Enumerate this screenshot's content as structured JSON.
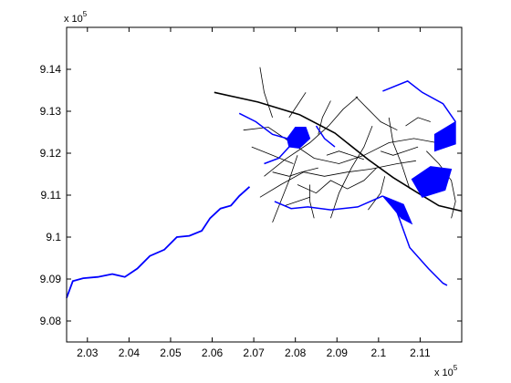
{
  "chart_data": {
    "type": "map",
    "title": "",
    "xlabel": "",
    "ylabel": "",
    "x_multiplier_label": "x 10",
    "x_multiplier_exp": "5",
    "y_multiplier_label": "x 10",
    "y_multiplier_exp": "5",
    "xlim": [
      2.025,
      2.12
    ],
    "ylim": [
      9.075,
      9.15
    ],
    "x_ticks": [
      "2.03",
      "2.04",
      "2.05",
      "2.06",
      "2.07",
      "2.08",
      "2.09",
      "2.1",
      "2.11"
    ],
    "x_tick_values": [
      2.03,
      2.04,
      2.05,
      2.06,
      2.07,
      2.08,
      2.09,
      2.1,
      2.11
    ],
    "y_ticks": [
      "9.08",
      "9.09",
      "9.1",
      "9.11",
      "9.12",
      "9.13",
      "9.14"
    ],
    "y_tick_values": [
      9.08,
      9.09,
      9.1,
      9.11,
      9.12,
      9.13,
      9.14
    ],
    "grid": false,
    "colors": {
      "water": "#0000ff",
      "roads": "#000000",
      "axes": "#000000"
    },
    "layers": {
      "water_line": [
        [
          2.025,
          9.0855
        ],
        [
          2.0265,
          9.0895
        ],
        [
          2.029,
          9.0902
        ],
        [
          2.0325,
          9.0905
        ],
        [
          2.036,
          9.0912
        ],
        [
          2.039,
          9.0905
        ],
        [
          2.042,
          9.0925
        ],
        [
          2.045,
          9.0955
        ],
        [
          2.0485,
          9.097
        ],
        [
          2.0515,
          9.1
        ],
        [
          2.0545,
          9.1003
        ],
        [
          2.0575,
          9.1015
        ],
        [
          2.0595,
          9.1045
        ],
        [
          2.062,
          9.1068
        ],
        [
          2.0645,
          9.1075
        ],
        [
          2.0665,
          9.1098
        ],
        [
          2.069,
          9.112
        ]
      ],
      "water_bodies": [
        [
          [
            2.078,
            9.1235
          ],
          [
            2.08,
            9.1262
          ],
          [
            2.0825,
            9.1262
          ],
          [
            2.0835,
            9.1235
          ],
          [
            2.081,
            9.1212
          ],
          [
            2.0785,
            9.1215
          ]
        ],
        [
          [
            2.101,
            9.1098
          ],
          [
            2.106,
            9.1078
          ],
          [
            2.108,
            9.1032
          ],
          [
            2.1055,
            9.1045
          ],
          [
            2.103,
            9.1075
          ]
        ],
        [
          [
            2.108,
            9.1138
          ],
          [
            2.1125,
            9.1168
          ],
          [
            2.1175,
            9.1162
          ],
          [
            2.116,
            9.1112
          ],
          [
            2.1105,
            9.1095
          ]
        ],
        [
          [
            2.1135,
            9.1245
          ],
          [
            2.1185,
            9.1275
          ],
          [
            2.1185,
            9.1222
          ],
          [
            2.1135,
            9.1205
          ]
        ]
      ],
      "water_streams": [
        [
          [
            2.1035,
            9.1085
          ],
          [
            2.1075,
            9.0975
          ],
          [
            2.112,
            9.0925
          ],
          [
            2.1155,
            9.089
          ],
          [
            2.1165,
            9.0885
          ]
        ],
        [
          [
            2.0665,
            9.1295
          ],
          [
            2.0705,
            9.1275
          ],
          [
            2.0745,
            9.1245
          ],
          [
            2.078,
            9.1235
          ]
        ],
        [
          [
            2.101,
            9.1348
          ],
          [
            2.107,
            9.1372
          ],
          [
            2.1105,
            9.1345
          ],
          [
            2.1155,
            9.1318
          ],
          [
            2.1185,
            9.1275
          ]
        ],
        [
          [
            2.0725,
            9.1175
          ],
          [
            2.076,
            9.1188
          ],
          [
            2.0785,
            9.1215
          ]
        ],
        [
          [
            2.075,
            9.1085
          ],
          [
            2.079,
            9.1068
          ],
          [
            2.083,
            9.1072
          ],
          [
            2.0885,
            9.1065
          ],
          [
            2.095,
            9.1072
          ],
          [
            2.101,
            9.1098
          ]
        ],
        [
          [
            2.085,
            9.1265
          ],
          [
            2.087,
            9.1235
          ],
          [
            2.0895,
            9.1215
          ]
        ]
      ],
      "highway": [
        [
          2.0605,
          9.1345
        ],
        [
          2.071,
          9.1322
        ],
        [
          2.081,
          9.1292
        ],
        [
          2.0895,
          9.1248
        ],
        [
          2.0975,
          9.1185
        ],
        [
          2.1035,
          9.1142
        ],
        [
          2.109,
          9.1108
        ],
        [
          2.1145,
          9.1075
        ],
        [
          2.12,
          9.1062
        ]
      ],
      "roads": [
        [
          [
            2.0675,
            9.1255
          ],
          [
            2.0735,
            9.1262
          ],
          [
            2.079,
            9.1225
          ],
          [
            2.0845,
            9.1188
          ],
          [
            2.0905,
            9.1175
          ],
          [
            2.0965,
            9.1195
          ],
          [
            2.1025,
            9.1225
          ],
          [
            2.1085,
            9.1235
          ],
          [
            2.114,
            9.1225
          ]
        ],
        [
          [
            2.0715,
            9.1095
          ],
          [
            2.0765,
            9.1125
          ],
          [
            2.082,
            9.1155
          ],
          [
            2.087,
            9.1145
          ],
          [
            2.0925,
            9.1155
          ],
          [
            2.098,
            9.1162
          ],
          [
            2.1045,
            9.1175
          ],
          [
            2.109,
            9.1182
          ]
        ],
        [
          [
            2.0725,
            9.1145
          ],
          [
            2.0775,
            9.1185
          ],
          [
            2.0835,
            9.1225
          ],
          [
            2.088,
            9.1265
          ],
          [
            2.0915,
            9.1305
          ],
          [
            2.095,
            9.1335
          ]
        ],
        [
          [
            2.0805,
            9.1125
          ],
          [
            2.085,
            9.1105
          ],
          [
            2.0885,
            9.1135
          ],
          [
            2.0925,
            9.1115
          ],
          [
            2.0965,
            9.1135
          ],
          [
            2.0995,
            9.1165
          ]
        ],
        [
          [
            2.0745,
            9.1035
          ],
          [
            2.0765,
            9.1085
          ],
          [
            2.0785,
            9.1135
          ],
          [
            2.0805,
            9.1195
          ]
        ],
        [
          [
            2.0885,
            9.1045
          ],
          [
            2.0905,
            9.1105
          ],
          [
            2.0935,
            9.1165
          ],
          [
            2.0965,
            9.1215
          ],
          [
            2.0985,
            9.1265
          ]
        ],
        [
          [
            2.1025,
            9.1285
          ],
          [
            2.1035,
            9.1225
          ],
          [
            2.1055,
            9.1175
          ],
          [
            2.1075,
            9.1115
          ]
        ],
        [
          [
            2.0715,
            9.1405
          ],
          [
            2.0725,
            9.1345
          ],
          [
            2.0745,
            9.1285
          ]
        ],
        [
          [
            2.1115,
            9.1205
          ],
          [
            2.1145,
            9.1175
          ],
          [
            2.1175,
            9.1135
          ],
          [
            2.1185,
            9.1085
          ],
          [
            2.1175,
            9.1045
          ]
        ],
        [
          [
            2.0855,
            9.1245
          ],
          [
            2.0865,
            9.1285
          ],
          [
            2.0885,
            9.1325
          ]
        ],
        [
          [
            2.0945,
            9.1335
          ],
          [
            2.0975,
            9.1305
          ],
          [
            2.1005,
            9.1275
          ],
          [
            2.1045,
            9.1255
          ]
        ],
        [
          [
            2.0835,
            9.1125
          ],
          [
            2.0835,
            9.1085
          ],
          [
            2.0845,
            9.1045
          ]
        ],
        [
          [
            2.0975,
            9.1065
          ],
          [
            2.1005,
            9.1105
          ],
          [
            2.1015,
            9.1145
          ]
        ],
        [
          [
            2.0695,
            9.1215
          ],
          [
            2.0745,
            9.1195
          ],
          [
            2.0795,
            9.1175
          ]
        ],
        [
          [
            2.0745,
            9.1155
          ],
          [
            2.0785,
            9.1145
          ],
          [
            2.0815,
            9.1155
          ],
          [
            2.0855,
            9.1165
          ]
        ],
        [
          [
            2.0875,
            9.1195
          ],
          [
            2.0905,
            9.1205
          ],
          [
            2.0935,
            9.1195
          ],
          [
            2.0965,
            9.1185
          ]
        ],
        [
          [
            2.1065,
            9.1265
          ],
          [
            2.1095,
            9.1285
          ],
          [
            2.1125,
            9.1275
          ]
        ],
        [
          [
            2.0785,
            9.1285
          ],
          [
            2.0805,
            9.1315
          ],
          [
            2.0825,
            9.1345
          ]
        ],
        [
          [
            2.1005,
            9.1205
          ],
          [
            2.1035,
            9.1195
          ],
          [
            2.1065,
            9.1205
          ],
          [
            2.1095,
            9.1215
          ]
        ],
        [
          [
            2.0775,
            9.1075
          ],
          [
            2.0805,
            9.1085
          ],
          [
            2.0835,
            9.1095
          ]
        ]
      ]
    }
  }
}
